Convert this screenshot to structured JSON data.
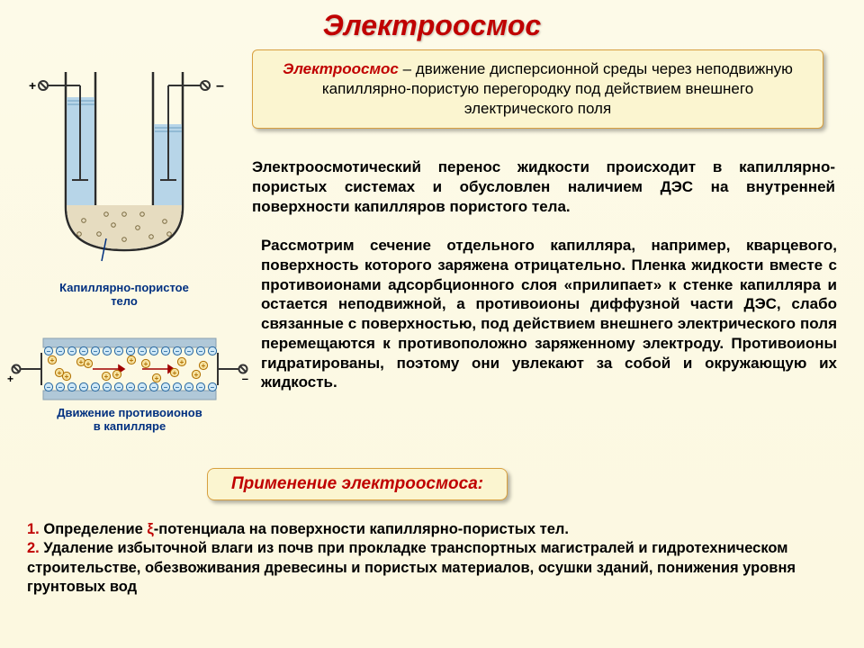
{
  "title": "Электроосмос",
  "definition": {
    "term": "Электроосмос",
    "body": " – движение дисперсионной среды через неподвижную капиллярно-пористую перегородку под действием внешнего электрического поля"
  },
  "para1": "Электроосмотический перенос жидкости происходит в капиллярно-пористых системах и обусловлен наличием ДЭС на внутренней поверхности капилляров пористого тела.",
  "para2": "Рассмотрим сечение отдельного капилляра, например, кварцевого, поверхность которого заряжена отрицательно. Пленка жидкости вместе с противоионами адсорбционного слоя «прилипает» к стенке капилляра и остается неподвижной, а противоионы диффузной части ДЭС, слабо связанные с поверхностью, под действием внешнего электрического поля перемещаются к противоположно заряженному электроду. Противоионы гидратированы, поэтому они увлекают за собой и окружающую их жидкость.",
  "applications": {
    "heading": "Применение электроосмоса:",
    "items": [
      "Определение ξ-потенциала на поверхности капиллярно-пористых тел.",
      "Удаление избыточной влаги из почв при прокладке транспортных магистралей и гидротехническом строительстве, обезвоживания древесины и пористых материалов, осушки зданий, понижения уровня грунтовых вод"
    ]
  },
  "diagram_utube": {
    "caption": "Капиллярно-пористое\nтело",
    "left_sign": "+",
    "right_sign": "–",
    "colors": {
      "tube_stroke": "#2a2a2a",
      "liquid_fill": "#b7d5e8",
      "porous_fill": "#e6dcc0",
      "dot_stroke": "#7a6a40",
      "electrode": "#333"
    }
  },
  "diagram_capillary": {
    "caption": "Движение противоионов\nв капилляре",
    "left_sign": "+",
    "right_sign": "–",
    "colors": {
      "wall": "#b0c8d8",
      "wall_line": "#88a0b0",
      "minus_fill": "#cfe8f6",
      "minus_stroke": "#2868a0",
      "plus_fill": "#f6e2a0",
      "plus_stroke": "#b07000",
      "arrow": "#a00000",
      "electrode": "#333"
    },
    "minus_text": "–",
    "plus_text": "+"
  },
  "style": {
    "title_color": "#c00000",
    "badge_bg": "#fbf5d0",
    "badge_border": "#d8a040",
    "body_font": "Arial",
    "title_fontsize": 32,
    "body_fontsize": 17,
    "caption_color": "#003080"
  }
}
